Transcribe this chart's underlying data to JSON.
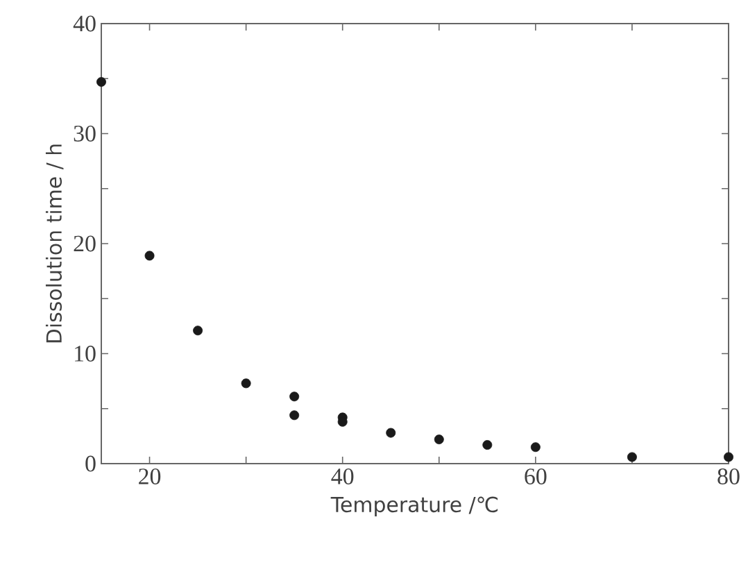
{
  "chart_data": {
    "type": "scatter",
    "xlabel": "Temperature /℃",
    "ylabel": "Dissolution time / h",
    "x": [
      15,
      20,
      25,
      30,
      35,
      35,
      40,
      40,
      45,
      50,
      55,
      60,
      70,
      80
    ],
    "values": [
      34.7,
      18.9,
      12.1,
      7.3,
      6.1,
      4.4,
      4.2,
      3.8,
      2.8,
      2.2,
      1.7,
      1.5,
      0.6,
      0.6
    ],
    "color": "#1a1a1a",
    "marker": "circle",
    "xlim": [
      15,
      80
    ],
    "ylim": [
      0,
      40
    ],
    "xticks": [
      20,
      {
        "value": 30,
        "label": null
      },
      40,
      {
        "value": 50,
        "label": null
      },
      60,
      {
        "value": 70,
        "label": null
      },
      80
    ],
    "yticks": [
      0,
      {
        "value": 5,
        "label": null
      },
      10,
      {
        "value": 15,
        "label": null
      },
      20,
      {
        "value": 25,
        "label": null
      },
      30,
      {
        "value": 35,
        "label": null
      },
      40
    ],
    "grid": false,
    "legend": false
  }
}
